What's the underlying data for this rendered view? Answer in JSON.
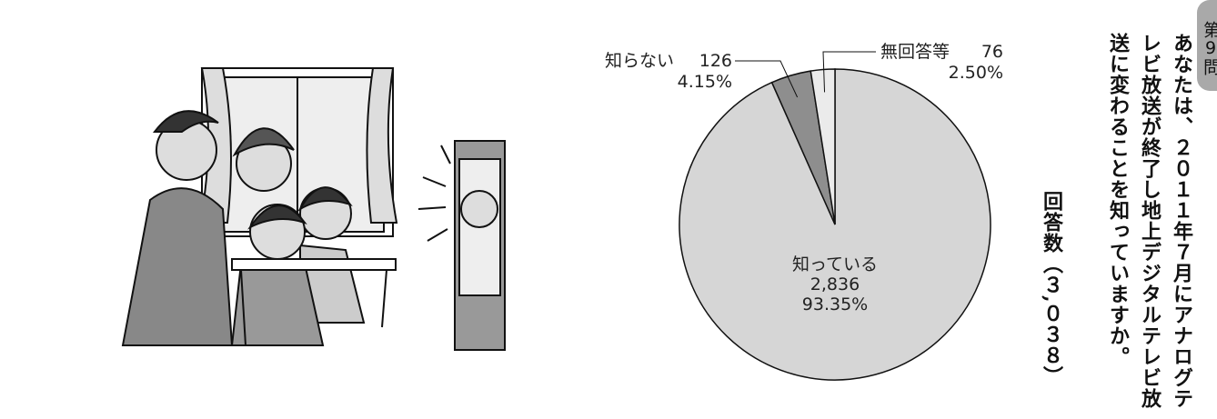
{
  "chart_data": {
    "type": "pie",
    "question": "あなたは、２０１１年７月にアナログテレビ放送が終了し地上デジタルテレビ放送に変わることを知っていますか。",
    "respondents": "回答数（３,０３８）",
    "badge": "第9問",
    "categories": [
      "知っている",
      "知らない",
      "無回答等"
    ],
    "values": [
      2836,
      126,
      76
    ],
    "value_labels": [
      "2,836",
      "126",
      "76"
    ],
    "percents": [
      93.35,
      4.15,
      2.5
    ],
    "percent_labels": [
      "93.35%",
      "4.15%",
      "2.50%"
    ],
    "colors": [
      "#d6d6d6",
      "#8e8e8e",
      "#ebebeb"
    ]
  }
}
